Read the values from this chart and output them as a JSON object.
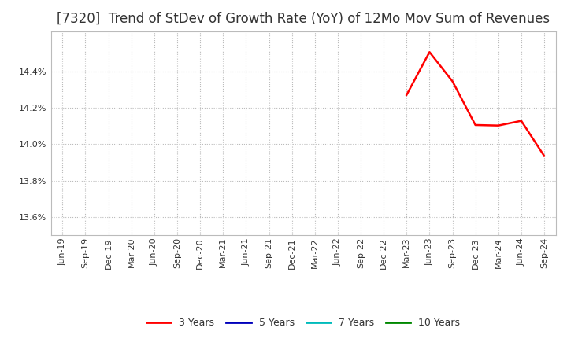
{
  "title": "[7320]  Trend of StDev of Growth Rate (YoY) of 12Mo Mov Sum of Revenues",
  "x_labels": [
    "Jun-19",
    "Sep-19",
    "Dec-19",
    "Mar-20",
    "Jun-20",
    "Sep-20",
    "Dec-20",
    "Mar-21",
    "Jun-21",
    "Sep-21",
    "Dec-21",
    "Mar-22",
    "Jun-22",
    "Sep-22",
    "Dec-22",
    "Mar-23",
    "Jun-23",
    "Sep-23",
    "Dec-23",
    "Mar-24",
    "Jun-24",
    "Sep-24"
  ],
  "series_3y_indices": [
    15,
    16,
    17,
    18,
    19,
    20,
    21
  ],
  "series_3y_values": [
    14.27,
    14.505,
    14.345,
    14.105,
    14.102,
    14.128,
    13.935
  ],
  "series_3y_color": "#ff0000",
  "series_5y_color": "#0000bb",
  "series_7y_color": "#00bbbb",
  "series_10y_color": "#008800",
  "ylim": [
    13.5,
    14.62
  ],
  "yticks": [
    13.6,
    13.8,
    14.0,
    14.2,
    14.4
  ],
  "background_color": "#ffffff",
  "plot_bg_color": "#ffffff",
  "grid_color": "#bbbbbb",
  "title_fontsize": 12,
  "title_color": "#333333",
  "tick_fontsize": 8,
  "legend_entries": [
    "3 Years",
    "5 Years",
    "7 Years",
    "10 Years"
  ],
  "legend_colors": [
    "#ff0000",
    "#0000bb",
    "#00bbbb",
    "#008800"
  ],
  "line_width": 1.8
}
